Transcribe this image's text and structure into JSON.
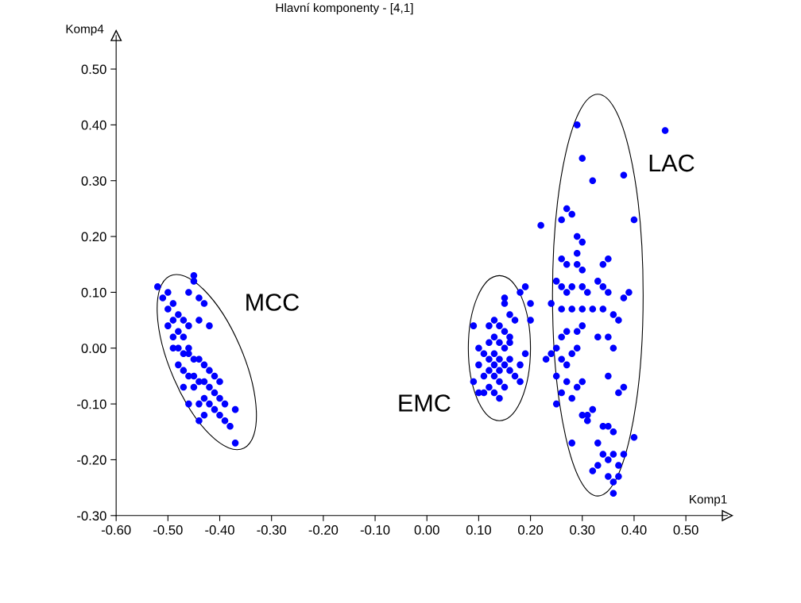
{
  "chart_data": {
    "type": "scatter",
    "title": "Hlavní komponenty - [4,1]",
    "xlabel": "Komp1",
    "ylabel": "Komp4",
    "marker": "circle",
    "grid": false,
    "legend": false,
    "xlim": [
      -0.6,
      0.58
    ],
    "ylim": [
      -0.3,
      0.56
    ],
    "xticks": [
      {
        "value": -0.6,
        "label": "-0.60"
      },
      {
        "value": -0.5,
        "label": "-0.50"
      },
      {
        "value": -0.4,
        "label": "-0.40"
      },
      {
        "value": -0.3,
        "label": "-0.30"
      },
      {
        "value": -0.2,
        "label": "-0.20"
      },
      {
        "value": -0.1,
        "label": "-0.10"
      },
      {
        "value": 0,
        "label": "0.00"
      },
      {
        "value": 0.1,
        "label": "0.10"
      },
      {
        "value": 0.2,
        "label": "0.20"
      },
      {
        "value": 0.3,
        "label": "0.30"
      },
      {
        "value": 0.4,
        "label": "0.40"
      },
      {
        "value": 0.5,
        "label": "0.50"
      }
    ],
    "yticks": [
      {
        "value": -0.3,
        "label": "-0.30"
      },
      {
        "value": -0.2,
        "label": "-0.20"
      },
      {
        "value": -0.1,
        "label": "-0.10"
      },
      {
        "value": 0,
        "label": "0.00"
      },
      {
        "value": 0.1,
        "label": "0.10"
      },
      {
        "value": 0.2,
        "label": "0.20"
      },
      {
        "value": 0.3,
        "label": "0.30"
      },
      {
        "value": 0.4,
        "label": "0.40"
      },
      {
        "value": 0.5,
        "label": "0.50"
      }
    ],
    "annotations": [
      "MCC",
      "EMC",
      "LAC"
    ],
    "series": [
      {
        "color": "#0000ff",
        "x": [
          -0.52,
          -0.5,
          -0.51,
          -0.49,
          -0.5,
          -0.48,
          -0.49,
          -0.47,
          -0.46,
          -0.45,
          -0.45,
          -0.44,
          -0.43,
          -0.48,
          -0.47,
          -0.49,
          -0.46,
          -0.44,
          -0.42,
          -0.48,
          -0.47,
          -0.49,
          -0.46,
          -0.48,
          -0.47,
          -0.46,
          -0.45,
          -0.44,
          -0.43,
          -0.42,
          -0.45,
          -0.44,
          -0.43,
          -0.42,
          -0.41,
          -0.4,
          -0.47,
          -0.46,
          -0.44,
          -0.43,
          -0.42,
          -0.41,
          -0.4,
          -0.43,
          -0.41,
          -0.4,
          -0.39,
          -0.38,
          -0.39,
          -0.37,
          -0.37,
          -0.44,
          -0.45,
          -0.46,
          -0.5,
          0.09,
          0.1,
          0.09,
          0.1,
          0.11,
          0.12,
          0.13,
          0.14,
          0.11,
          0.12,
          0.13,
          0.14,
          0.15,
          0.12,
          0.13,
          0.14,
          0.15,
          0.16,
          0.12,
          0.13,
          0.14,
          0.15,
          0.16,
          0.12,
          0.13,
          0.14,
          0.15,
          0.16,
          0.17,
          0.15,
          0.15,
          0.18,
          0.19,
          0.2,
          0.2,
          0.19,
          0.18,
          0.17,
          0.18,
          0.16,
          0.11,
          0.1,
          0.13,
          0.14,
          0.16,
          0.29,
          0.46,
          0.3,
          0.38,
          0.32,
          0.22,
          0.4,
          0.27,
          0.28,
          0.26,
          0.29,
          0.3,
          0.29,
          0.26,
          0.27,
          0.29,
          0.3,
          0.34,
          0.35,
          0.25,
          0.26,
          0.27,
          0.28,
          0.3,
          0.31,
          0.33,
          0.34,
          0.35,
          0.38,
          0.39,
          0.24,
          0.26,
          0.28,
          0.3,
          0.32,
          0.34,
          0.36,
          0.37,
          0.29,
          0.3,
          0.27,
          0.26,
          0.33,
          0.35,
          0.36,
          0.25,
          0.24,
          0.26,
          0.27,
          0.28,
          0.29,
          0.23,
          0.25,
          0.27,
          0.26,
          0.28,
          0.29,
          0.3,
          0.35,
          0.37,
          0.38,
          0.25,
          0.3,
          0.31,
          0.32,
          0.34,
          0.35,
          0.36,
          0.4,
          0.28,
          0.33,
          0.34,
          0.35,
          0.36,
          0.37,
          0.38,
          0.35,
          0.36,
          0.32,
          0.33,
          0.37,
          0.36,
          0.31
        ],
        "values": [
          0.11,
          0.1,
          0.09,
          0.08,
          0.07,
          0.06,
          0.05,
          0.05,
          0.1,
          0.13,
          0.12,
          0.09,
          0.08,
          0.03,
          0.02,
          0.02,
          0.04,
          0.05,
          0.04,
          0.0,
          -0.01,
          0.0,
          -0.01,
          -0.03,
          -0.04,
          -0.05,
          -0.02,
          -0.02,
          -0.03,
          -0.04,
          -0.07,
          -0.06,
          -0.06,
          -0.07,
          -0.05,
          -0.06,
          -0.07,
          -0.1,
          -0.1,
          -0.09,
          -0.1,
          -0.08,
          -0.09,
          -0.12,
          -0.11,
          -0.12,
          -0.1,
          -0.14,
          -0.13,
          -0.11,
          -0.17,
          -0.13,
          -0.05,
          0.0,
          0.04,
          0.04,
          0.0,
          -0.06,
          -0.08,
          -0.08,
          -0.07,
          -0.08,
          -0.09,
          -0.05,
          -0.04,
          -0.05,
          -0.06,
          -0.07,
          -0.02,
          -0.01,
          -0.02,
          -0.03,
          -0.02,
          0.01,
          0.02,
          0.01,
          0.0,
          0.01,
          0.04,
          0.05,
          0.04,
          0.03,
          0.06,
          0.05,
          0.09,
          0.08,
          0.1,
          0.11,
          0.08,
          0.05,
          -0.01,
          -0.03,
          -0.05,
          -0.06,
          -0.04,
          -0.01,
          -0.03,
          -0.03,
          -0.04,
          0.02,
          0.4,
          0.39,
          0.34,
          0.31,
          0.3,
          0.22,
          0.23,
          0.25,
          0.24,
          0.23,
          0.2,
          0.19,
          0.17,
          0.16,
          0.15,
          0.15,
          0.14,
          0.15,
          0.16,
          0.12,
          0.11,
          0.1,
          0.11,
          0.11,
          0.1,
          0.12,
          0.11,
          0.1,
          0.09,
          0.1,
          0.08,
          0.07,
          0.07,
          0.07,
          0.07,
          0.07,
          0.06,
          0.05,
          0.03,
          0.04,
          0.03,
          0.02,
          0.02,
          0.02,
          0.0,
          0.0,
          -0.01,
          -0.02,
          -0.03,
          -0.01,
          0.0,
          -0.02,
          -0.05,
          -0.06,
          -0.08,
          -0.09,
          -0.07,
          -0.06,
          -0.05,
          -0.08,
          -0.07,
          -0.1,
          -0.12,
          -0.13,
          -0.11,
          -0.14,
          -0.14,
          -0.15,
          -0.16,
          -0.17,
          -0.17,
          -0.19,
          -0.2,
          -0.19,
          -0.21,
          -0.19,
          -0.23,
          -0.24,
          -0.22,
          -0.21,
          -0.23,
          -0.26,
          -0.12
        ]
      }
    ]
  }
}
